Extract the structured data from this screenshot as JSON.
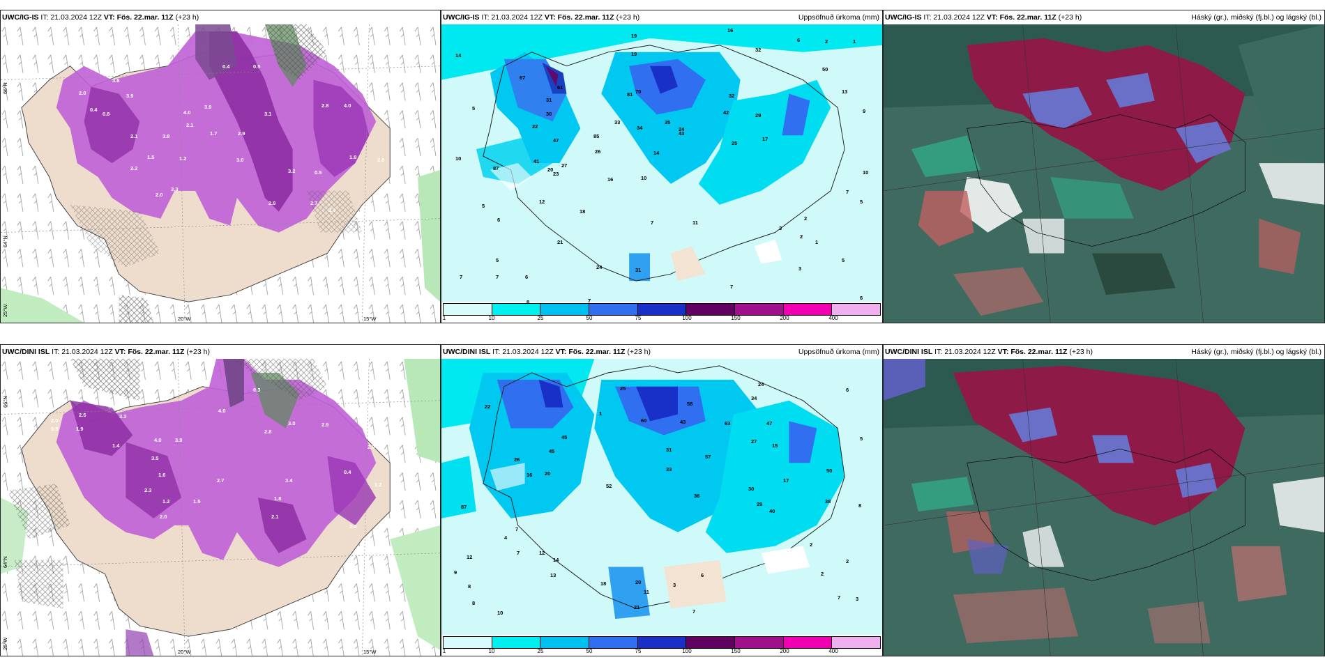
{
  "panels": {
    "p1": {
      "model": "UWC/IG-IS",
      "it_label": "IT:",
      "it": "21.03.2024 12Z",
      "vt_label": "VT:",
      "vt": "Fös. 22.mar. 11Z",
      "lead": "(+23 h)",
      "right": ""
    },
    "p2": {
      "model": "UWC/IG-IS",
      "it_label": "IT:",
      "it": "21.03.2024 12Z",
      "vt_label": "VT:",
      "vt": "Fös. 22.mar. 11Z",
      "lead": "(+23 h)",
      "right": "Uppsöfnuð úrkoma (mm)"
    },
    "p3": {
      "model": "UWC/IG-IS",
      "it_label": "IT:",
      "it": "21.03.2024 12Z",
      "vt_label": "VT:",
      "vt": "Fös. 22.mar. 11Z",
      "lead": "(+23 h)",
      "right": "Háský (gr.), miðský (fj.bl.) og lágský (bl.)"
    },
    "p4": {
      "model": "UWC/DINI ISL",
      "it_label": "IT:",
      "it": "21.03.2024 12Z",
      "vt_label": "VT:",
      "vt": "Fös. 22.mar. 11Z",
      "lead": "(+23 h)",
      "right": ""
    },
    "p5": {
      "model": "UWC/DINI ISL",
      "it_label": "IT:",
      "it": "21.03.2024 12Z",
      "vt_label": "VT:",
      "vt": "Fös. 22.mar. 11Z",
      "lead": "(+23 h)",
      "right": "Uppsöfnuð úrkoma (mm)"
    },
    "p6": {
      "model": "UWC/DINI ISL",
      "it_label": "IT:",
      "it": "21.03.2024 12Z",
      "vt_label": "VT:",
      "vt": "Fös. 22.mar. 11Z",
      "lead": "(+23 h)",
      "right": "Háský (gr.), miðský (fj.bl.) og lágský (bl.)"
    }
  },
  "axes": {
    "lat1": "66°N",
    "lat2": "64°N",
    "lon1": "20°W",
    "lon2": "15°W",
    "lat0": "25°W"
  },
  "colorbar": {
    "labels": [
      "1",
      "10",
      "25",
      "50",
      "75",
      "100",
      "150",
      "200",
      "400"
    ],
    "colors": [
      "#d8fbfb",
      "#00f0f0",
      "#00c0f0",
      "#3070f0",
      "#1830c8",
      "#600060",
      "#a0108a",
      "#f000b0",
      "#f0b0f0"
    ]
  },
  "snow_values_top": [
    "3.6",
    "3.9",
    "2.0",
    "0.4",
    "0.8",
    "2.1",
    "3.8",
    "1.5",
    "2.2",
    "2.0",
    "3.3",
    "1.2",
    "0.4",
    "0.5",
    "4.0",
    "2.1",
    "3.9",
    "1.7",
    "2.9",
    "3.1",
    "3.0",
    "3.2",
    "2.9",
    "2.7",
    "3.3",
    "0.5",
    "2.8",
    "4.0",
    "1.9",
    "1.1",
    "2.0"
  ],
  "snow_values_bottom": [
    "3.5",
    "2.5",
    "3.3",
    "0.5",
    "1.9",
    "2.0",
    "1.4",
    "4.0",
    "3.9",
    "1.6",
    "2.3",
    "1.2",
    "1.5",
    "2.7",
    "3.5",
    "2.0",
    "3.4",
    "1.8",
    "2.1",
    "4.0",
    "2.8",
    "3.0",
    "2.9",
    "0.4",
    "2.9",
    "1.2",
    "0.3",
    "2.2"
  ],
  "precip_values_top": [
    "14",
    "19",
    "19",
    "16",
    "32",
    "6",
    "2",
    "1",
    "9",
    "10",
    "5",
    "6",
    "5",
    "7",
    "7",
    "6",
    "8",
    "7",
    "67",
    "61",
    "31",
    "30",
    "47",
    "22",
    "41",
    "27",
    "87",
    "20",
    "23",
    "12",
    "18",
    "16",
    "10",
    "7",
    "33",
    "34",
    "14",
    "85",
    "26",
    "35",
    "70",
    "24",
    "43",
    "25",
    "17",
    "29",
    "13",
    "10",
    "7",
    "11",
    "3",
    "2",
    "5",
    "2",
    "1",
    "3",
    "5",
    "6",
    "7",
    "21",
    "24",
    "32",
    "42",
    "50",
    "81",
    "31",
    "5"
  ],
  "precip_values_bottom": [
    "25",
    "24",
    "34",
    "58",
    "43",
    "60",
    "45",
    "47",
    "15",
    "50",
    "38",
    "87",
    "22",
    "26",
    "16",
    "20",
    "1",
    "6",
    "8",
    "5",
    "7",
    "8",
    "4",
    "7",
    "12",
    "14",
    "13",
    "20",
    "21",
    "11",
    "3",
    "6",
    "2",
    "2",
    "7",
    "18",
    "52",
    "33",
    "57",
    "27",
    "31",
    "29",
    "36",
    "30",
    "45",
    "63",
    "40",
    "17",
    "12",
    "9",
    "8",
    "10",
    "7",
    "2",
    "3"
  ]
}
